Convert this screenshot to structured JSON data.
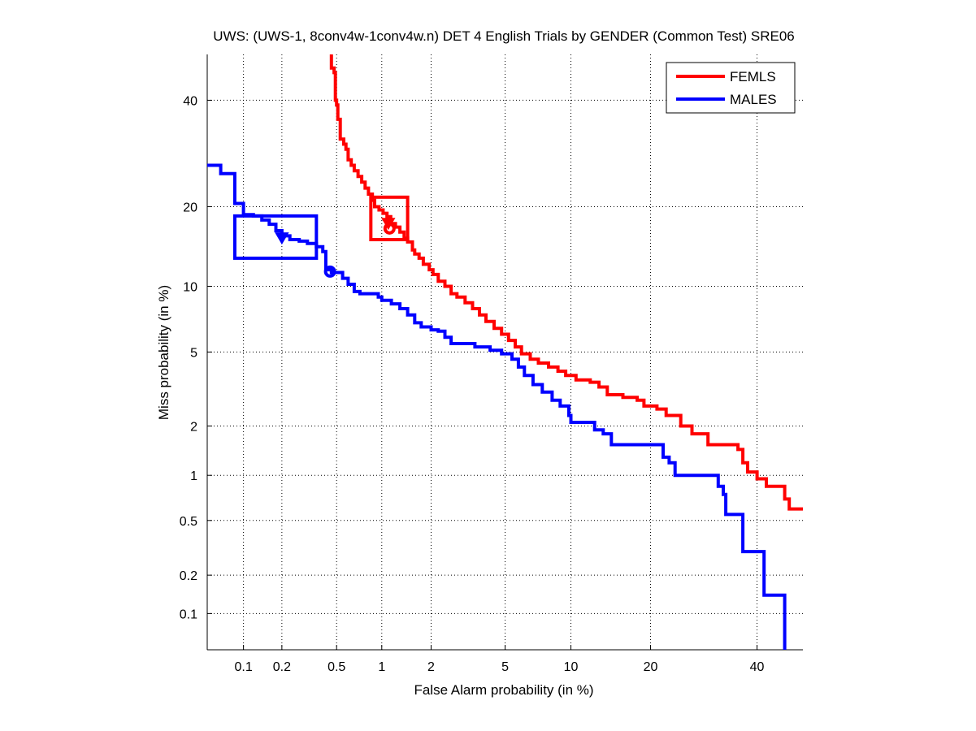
{
  "chart_data": {
    "type": "line",
    "title": "UWS: (UWS-1, 8conv4w-1conv4w.n) DET 4 English Trials by GENDER (Common Test) SRE06",
    "xlabel": "False Alarm probability (in %)",
    "ylabel": "Miss probability (in %)",
    "scale": "normal-deviate",
    "xlim": [
      0.05,
      50
    ],
    "ylim": [
      0.05,
      50
    ],
    "grid": true,
    "legend_position": "top-right",
    "xticks": [
      0.1,
      0.2,
      0.5,
      1,
      2,
      5,
      10,
      20,
      40
    ],
    "xtick_labels": [
      "0.1",
      "0.2",
      "0.5",
      "1",
      "2",
      "5",
      "10",
      "20",
      "40"
    ],
    "yticks": [
      0.1,
      0.2,
      0.5,
      1,
      2,
      5,
      10,
      20,
      40
    ],
    "ytick_labels": [
      "0.1",
      "0.2",
      "0.5",
      "1",
      "2",
      "5",
      "10",
      "20",
      "40"
    ],
    "series": [
      {
        "name": "FEMLS",
        "color": "#ff0000",
        "points": [
          [
            0.46,
            50
          ],
          [
            0.46,
            47
          ],
          [
            0.48,
            46
          ],
          [
            0.49,
            45
          ],
          [
            0.49,
            40
          ],
          [
            0.5,
            39
          ],
          [
            0.51,
            36
          ],
          [
            0.53,
            35
          ],
          [
            0.53,
            32
          ],
          [
            0.56,
            31
          ],
          [
            0.58,
            30
          ],
          [
            0.6,
            28
          ],
          [
            0.63,
            27
          ],
          [
            0.66,
            26
          ],
          [
            0.7,
            25
          ],
          [
            0.74,
            24
          ],
          [
            0.78,
            23
          ],
          [
            0.82,
            22
          ],
          [
            0.87,
            21
          ],
          [
            0.9,
            20
          ],
          [
            0.96,
            19.5
          ],
          [
            1.02,
            19
          ],
          [
            1.08,
            18.5
          ],
          [
            1.14,
            17.5
          ],
          [
            1.22,
            17
          ],
          [
            1.3,
            16.3
          ],
          [
            1.38,
            15.5
          ],
          [
            1.45,
            15
          ],
          [
            1.55,
            14
          ],
          [
            1.6,
            13.5
          ],
          [
            1.7,
            13
          ],
          [
            1.8,
            12.3
          ],
          [
            1.95,
            11.7
          ],
          [
            2.05,
            11.2
          ],
          [
            2.2,
            10.5
          ],
          [
            2.4,
            10
          ],
          [
            2.6,
            9.3
          ],
          [
            2.8,
            9
          ],
          [
            3.1,
            8.5
          ],
          [
            3.4,
            8
          ],
          [
            3.7,
            7.5
          ],
          [
            4.0,
            7
          ],
          [
            4.4,
            6.5
          ],
          [
            4.8,
            6.1
          ],
          [
            5.2,
            5.7
          ],
          [
            5.6,
            5.3
          ],
          [
            6.0,
            4.9
          ],
          [
            6.6,
            4.6
          ],
          [
            7.2,
            4.4
          ],
          [
            8.0,
            4.2
          ],
          [
            8.8,
            4.0
          ],
          [
            9.5,
            3.8
          ],
          [
            10.5,
            3.6
          ],
          [
            12,
            3.5
          ],
          [
            13,
            3.3
          ],
          [
            14,
            3.0
          ],
          [
            16,
            2.9
          ],
          [
            18,
            2.8
          ],
          [
            19,
            2.6
          ],
          [
            21,
            2.5
          ],
          [
            22.5,
            2.3
          ],
          [
            25,
            2.0
          ],
          [
            27,
            1.8
          ],
          [
            30,
            1.55
          ],
          [
            34,
            1.55
          ],
          [
            36,
            1.45
          ],
          [
            37,
            1.2
          ],
          [
            38,
            1.05
          ],
          [
            40,
            0.95
          ],
          [
            42,
            0.85
          ],
          [
            45,
            0.85
          ],
          [
            46,
            0.7
          ],
          [
            47,
            0.6
          ],
          [
            50,
            0.6
          ]
        ],
        "actual_dcf_point": [
          1.1,
          17.5
        ],
        "min_dcf_point": [
          1.12,
          16.8
        ],
        "confidence_box": {
          "fa_range": [
            0.85,
            1.45
          ],
          "miss_range": [
            15.3,
            21.5
          ]
        }
      },
      {
        "name": "MALES",
        "color": "#0000ff",
        "points": [
          [
            0.05,
            27
          ],
          [
            0.065,
            27
          ],
          [
            0.065,
            25.5
          ],
          [
            0.085,
            25.5
          ],
          [
            0.085,
            20.5
          ],
          [
            0.1,
            20.5
          ],
          [
            0.1,
            18.8
          ],
          [
            0.12,
            18.6
          ],
          [
            0.14,
            18
          ],
          [
            0.16,
            17.4
          ],
          [
            0.18,
            16.5
          ],
          [
            0.2,
            15.8
          ],
          [
            0.23,
            15.3
          ],
          [
            0.27,
            15.1
          ],
          [
            0.31,
            14.8
          ],
          [
            0.36,
            14.4
          ],
          [
            0.4,
            13.8
          ],
          [
            0.42,
            13.2
          ],
          [
            0.42,
            11.7
          ],
          [
            0.46,
            11.4
          ],
          [
            0.52,
            11.4
          ],
          [
            0.55,
            10.8
          ],
          [
            0.6,
            10.2
          ],
          [
            0.66,
            9.5
          ],
          [
            0.72,
            9.3
          ],
          [
            0.85,
            9.3
          ],
          [
            0.95,
            9.0
          ],
          [
            1.0,
            8.7
          ],
          [
            1.15,
            8.4
          ],
          [
            1.3,
            8.0
          ],
          [
            1.45,
            7.5
          ],
          [
            1.6,
            6.9
          ],
          [
            1.75,
            6.6
          ],
          [
            2.0,
            6.4
          ],
          [
            2.2,
            6.3
          ],
          [
            2.4,
            5.9
          ],
          [
            2.6,
            5.5
          ],
          [
            3.0,
            5.5
          ],
          [
            3.5,
            5.3
          ],
          [
            4.2,
            5.1
          ],
          [
            4.8,
            4.9
          ],
          [
            5.4,
            4.6
          ],
          [
            5.8,
            4.2
          ],
          [
            6.2,
            3.8
          ],
          [
            6.8,
            3.4
          ],
          [
            7.5,
            3.1
          ],
          [
            8.3,
            2.8
          ],
          [
            9.0,
            2.6
          ],
          [
            9.8,
            2.3
          ],
          [
            10,
            2.1
          ],
          [
            11.5,
            2.1
          ],
          [
            12.5,
            1.9
          ],
          [
            13.5,
            1.8
          ],
          [
            14.5,
            1.55
          ],
          [
            20,
            1.55
          ],
          [
            22,
            1.3
          ],
          [
            23,
            1.2
          ],
          [
            24,
            1.0
          ],
          [
            31,
            1.0
          ],
          [
            32,
            0.85
          ],
          [
            33,
            0.75
          ],
          [
            33.5,
            0.55
          ],
          [
            36,
            0.55
          ],
          [
            37,
            0.3
          ],
          [
            41,
            0.3
          ],
          [
            41.5,
            0.14
          ],
          [
            46,
            0.14
          ],
          [
            46,
            0.05
          ]
        ],
        "actual_dcf_point": [
          0.2,
          15.5
        ],
        "min_dcf_point": [
          0.45,
          11.5
        ],
        "confidence_box": {
          "fa_range": [
            0.085,
            0.36
          ],
          "miss_range": [
            13.0,
            18.6
          ]
        }
      }
    ]
  }
}
